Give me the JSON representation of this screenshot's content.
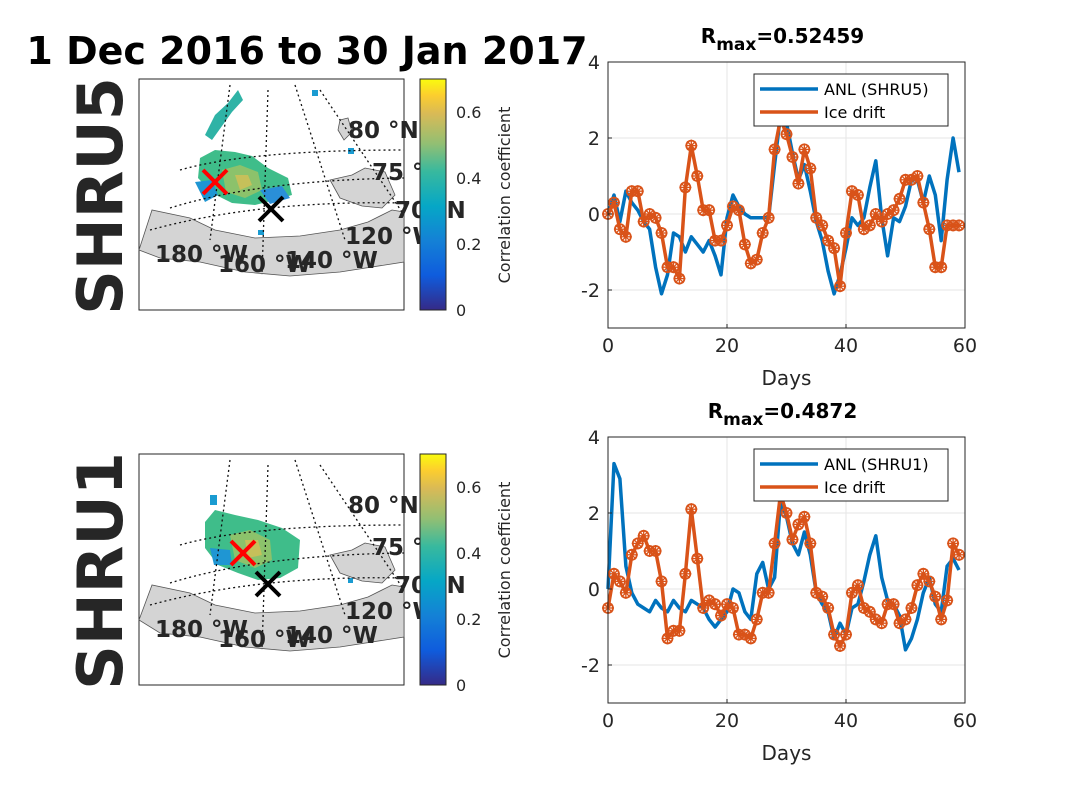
{
  "page_title": "1 Dec 2016 to 30 Jan 2017",
  "colors": {
    "anl": "#0072BD",
    "ice": "#D95319",
    "land": "#d4d4d4",
    "grid": "#e6e6e6",
    "axis": "#262626",
    "marker_red": "#ff0000",
    "marker_black": "#000000"
  },
  "map_panels": [
    {
      "station_label": "SHRU5",
      "lat_labels": [
        "80 °N",
        "75 °N",
        "70 °N"
      ],
      "lon_labels": [
        "180 °W",
        "160 °W",
        "140 °W",
        "120 °W"
      ],
      "colorbar": {
        "label": "Correlation coefficient",
        "ticks": [
          "0",
          "0.2",
          "0.4",
          "0.6"
        ],
        "range": [
          0,
          0.7
        ]
      }
    },
    {
      "station_label": "SHRU1",
      "lat_labels": [
        "80 °N",
        "75 °N",
        "70 °N"
      ],
      "lon_labels": [
        "180 °W",
        "160 °W",
        "140 °W",
        "120 °W"
      ],
      "colorbar": {
        "label": "Correlation coefficient",
        "ticks": [
          "0",
          "0.2",
          "0.4",
          "0.6"
        ],
        "range": [
          0,
          0.7
        ]
      }
    }
  ],
  "chart_data": [
    {
      "type": "line",
      "title_main": "R",
      "title_sub": "max",
      "title_value": "=0.52459",
      "xlabel": "Days",
      "ylabel": "",
      "xlim": [
        0,
        60
      ],
      "ylim": [
        -3,
        4
      ],
      "xticks": [
        0,
        20,
        40,
        60
      ],
      "yticks": [
        -2,
        0,
        2,
        4
      ],
      "grid": true,
      "legend_position": "top-right",
      "series": [
        {
          "name": "ANL (SHRU5)",
          "marker": false,
          "x": [
            0,
            1,
            2,
            3,
            4,
            5,
            6,
            7,
            8,
            9,
            10,
            11,
            12,
            13,
            14,
            15,
            16,
            17,
            18,
            19,
            20,
            21,
            22,
            23,
            24,
            25,
            26,
            27,
            28,
            29,
            30,
            31,
            32,
            33,
            34,
            35,
            36,
            37,
            38,
            39,
            40,
            41,
            42,
            43,
            44,
            45,
            46,
            47,
            48,
            49,
            50,
            51,
            52,
            53,
            54,
            55,
            56,
            57,
            58,
            59
          ],
          "y": [
            0.0,
            0.5,
            -0.2,
            0.6,
            0.3,
            0.1,
            -0.2,
            -0.4,
            -1.4,
            -2.1,
            -1.6,
            -0.5,
            -0.6,
            -1.0,
            -0.6,
            -0.8,
            -1.0,
            -0.7,
            -1.1,
            -1.6,
            -0.1,
            0.5,
            0.2,
            0.0,
            -0.1,
            -0.1,
            -0.1,
            -0.1,
            1.3,
            2.6,
            2.4,
            1.6,
            0.9,
            1.3,
            0.6,
            -0.2,
            -0.7,
            -1.5,
            -2.1,
            -1.6,
            -0.9,
            -0.1,
            -0.3,
            -0.1,
            0.7,
            1.4,
            -0.1,
            -1.1,
            -0.1,
            -0.2,
            0.2,
            0.9,
            0.9,
            0.3,
            1.0,
            0.5,
            -0.7,
            0.9,
            2.0,
            1.1
          ]
        },
        {
          "name": "Ice drift",
          "marker": true,
          "x": [
            0,
            1,
            2,
            3,
            4,
            5,
            6,
            7,
            8,
            9,
            10,
            11,
            12,
            13,
            14,
            15,
            16,
            17,
            18,
            19,
            20,
            21,
            22,
            23,
            24,
            25,
            26,
            27,
            28,
            29,
            30,
            31,
            32,
            33,
            34,
            35,
            36,
            37,
            38,
            39,
            40,
            41,
            42,
            43,
            44,
            45,
            46,
            47,
            48,
            49,
            50,
            51,
            52,
            53,
            54,
            55,
            56,
            57,
            58,
            59
          ],
          "y": [
            0.0,
            0.3,
            -0.4,
            -0.6,
            0.6,
            0.6,
            -0.2,
            0.0,
            -0.1,
            -0.5,
            -1.4,
            -1.4,
            -1.7,
            0.7,
            1.8,
            1.0,
            0.1,
            0.1,
            -0.7,
            -0.7,
            -0.3,
            0.2,
            0.1,
            -0.8,
            -1.3,
            -1.2,
            -0.5,
            -0.1,
            1.7,
            2.5,
            2.1,
            1.5,
            0.8,
            1.7,
            1.2,
            -0.1,
            -0.3,
            -0.7,
            -0.9,
            -1.9,
            -0.5,
            0.6,
            0.5,
            -0.4,
            -0.3,
            0.0,
            -0.2,
            0.0,
            0.1,
            0.4,
            0.9,
            0.9,
            1.0,
            0.3,
            -0.4,
            -1.4,
            -1.4,
            -0.3,
            -0.3,
            -0.3
          ]
        }
      ]
    },
    {
      "type": "line",
      "title_main": "R",
      "title_sub": "max",
      "title_value": "=0.4872",
      "xlabel": "Days",
      "ylabel": "",
      "xlim": [
        0,
        60
      ],
      "ylim": [
        -3,
        4
      ],
      "xticks": [
        0,
        20,
        40,
        60
      ],
      "yticks": [
        -2,
        0,
        2,
        4
      ],
      "grid": true,
      "legend_position": "top-right",
      "series": [
        {
          "name": "ANL (SHRU1)",
          "marker": false,
          "x": [
            0,
            1,
            2,
            3,
            4,
            5,
            6,
            7,
            8,
            9,
            10,
            11,
            12,
            13,
            14,
            15,
            16,
            17,
            18,
            19,
            20,
            21,
            22,
            23,
            24,
            25,
            26,
            27,
            28,
            29,
            30,
            31,
            32,
            33,
            34,
            35,
            36,
            37,
            38,
            39,
            40,
            41,
            42,
            43,
            44,
            45,
            46,
            47,
            48,
            49,
            50,
            51,
            52,
            53,
            54,
            55,
            56,
            57,
            58,
            59
          ],
          "y": [
            0.0,
            3.3,
            2.9,
            0.6,
            -0.1,
            -0.4,
            -0.5,
            -0.6,
            -0.3,
            -0.5,
            -0.6,
            -0.3,
            -0.5,
            -0.6,
            -0.3,
            -0.4,
            -0.5,
            -0.8,
            -1.0,
            -0.8,
            -0.6,
            0.0,
            -0.1,
            -0.6,
            -0.8,
            0.4,
            0.7,
            0.0,
            0.3,
            2.3,
            1.9,
            1.2,
            0.9,
            1.5,
            0.9,
            -0.1,
            -0.4,
            -0.6,
            -1.3,
            -0.9,
            -1.2,
            -0.5,
            -0.4,
            0.2,
            0.9,
            1.4,
            0.3,
            -0.3,
            -0.4,
            -0.7,
            -1.6,
            -1.3,
            -0.8,
            -0.1,
            0.3,
            -0.4,
            -0.6,
            0.6,
            0.8,
            0.5
          ]
        },
        {
          "name": "Ice drift",
          "marker": true,
          "x": [
            0,
            1,
            2,
            3,
            4,
            5,
            6,
            7,
            8,
            9,
            10,
            11,
            12,
            13,
            14,
            15,
            16,
            17,
            18,
            19,
            20,
            21,
            22,
            23,
            24,
            25,
            26,
            27,
            28,
            29,
            30,
            31,
            32,
            33,
            34,
            35,
            36,
            37,
            38,
            39,
            40,
            41,
            42,
            43,
            44,
            45,
            46,
            47,
            48,
            49,
            50,
            51,
            52,
            53,
            54,
            55,
            56,
            57,
            58,
            59
          ],
          "y": [
            -0.5,
            0.4,
            0.2,
            -0.1,
            0.9,
            1.2,
            1.4,
            1.0,
            1.0,
            0.2,
            -1.3,
            -1.1,
            -1.1,
            0.4,
            2.1,
            0.8,
            -0.5,
            -0.3,
            -0.4,
            -0.7,
            -0.4,
            -0.5,
            -1.2,
            -1.2,
            -1.3,
            -0.8,
            -0.1,
            -0.1,
            1.2,
            2.5,
            2.0,
            1.3,
            1.7,
            1.9,
            1.2,
            -0.1,
            -0.2,
            -0.5,
            -1.2,
            -1.5,
            -1.2,
            -0.1,
            0.1,
            -0.5,
            -0.6,
            -0.8,
            -0.9,
            -0.4,
            -0.4,
            -0.9,
            -0.8,
            -0.5,
            0.1,
            0.4,
            0.2,
            -0.2,
            -0.8,
            -0.3,
            1.2,
            0.9
          ]
        }
      ]
    }
  ]
}
